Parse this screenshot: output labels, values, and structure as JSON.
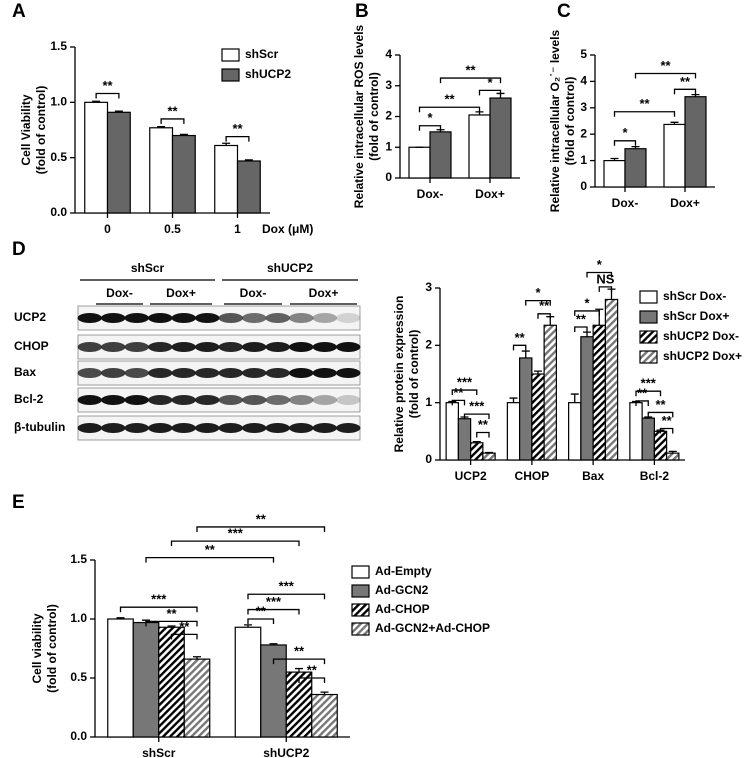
{
  "chart_data": [
    {
      "type": "bar",
      "panel": "A",
      "ylabel": [
        "Cell Viability",
        "(fold of control)"
      ],
      "xlabel": "Dox (μM)",
      "categories": [
        "0",
        "0.5",
        "1"
      ],
      "series": [
        {
          "name": "shScr",
          "color": "#ffffff",
          "values": [
            1.0,
            0.77,
            0.61
          ],
          "errors": [
            0.01,
            0.01,
            0.02
          ]
        },
        {
          "name": "shUCP2",
          "color": "#666666",
          "values": [
            0.91,
            0.7,
            0.47
          ],
          "errors": [
            0.01,
            0.01,
            0.01
          ]
        }
      ],
      "ylim": [
        0,
        1.5
      ],
      "yticks": [
        {
          "value": 0,
          "label": "0.0"
        },
        {
          "value": 0.5,
          "label": "0.5"
        },
        {
          "value": 1.0,
          "label": "1.0"
        },
        {
          "value": 1.5,
          "label": "1.5"
        }
      ],
      "legend": true,
      "annotations": [
        {
          "text": "**",
          "x": [
            -0.175,
            0.175
          ],
          "y": 1.08
        },
        {
          "text": "**",
          "x": [
            0.825,
            1.175
          ],
          "y": 0.85
        },
        {
          "text": "**",
          "x": [
            1.825,
            2.175
          ],
          "y": 0.69
        }
      ]
    },
    {
      "type": "bar",
      "panel": "B",
      "ylabel": [
        "Relative intracellular ROS levels",
        "(fold of control)"
      ],
      "categories": [
        "Dox-",
        "Dox+"
      ],
      "series": [
        {
          "name": "shScr",
          "color": "#ffffff",
          "values": [
            1.0,
            2.05
          ],
          "errors": [
            0.0,
            0.1
          ]
        },
        {
          "name": "shUCP2",
          "color": "#666666",
          "values": [
            1.5,
            2.6
          ],
          "errors": [
            0.07,
            0.15
          ]
        }
      ],
      "ylim": [
        0,
        4
      ],
      "yticks": [
        0,
        1,
        2,
        3,
        4
      ],
      "legend": false,
      "annotations": [
        {
          "text": "*",
          "x": [
            -0.175,
            0.175
          ],
          "y": 1.7
        },
        {
          "text": "**",
          "x": [
            -0.175,
            0.825
          ],
          "y": 2.3
        },
        {
          "text": "*",
          "x": [
            0.825,
            1.175
          ],
          "y": 2.85
        },
        {
          "text": "**",
          "x": [
            0.175,
            1.175
          ],
          "y": 3.25
        }
      ]
    },
    {
      "type": "bar",
      "panel": "C",
      "ylabel": [
        "Relative intracellular O₂˙⁻ levels",
        "(fold of control)"
      ],
      "categories": [
        "Dox-",
        "Dox+"
      ],
      "series": [
        {
          "name": "shScr",
          "color": "#ffffff",
          "values": [
            1.0,
            2.37
          ],
          "errors": [
            0.08,
            0.08
          ]
        },
        {
          "name": "shUCP2",
          "color": "#666666",
          "values": [
            1.45,
            3.42
          ],
          "errors": [
            0.08,
            0.08
          ]
        }
      ],
      "ylim": [
        0,
        5
      ],
      "yticks": [
        0,
        1,
        2,
        3,
        4,
        5
      ],
      "legend": false,
      "annotations": [
        {
          "text": "*",
          "x": [
            -0.175,
            0.175
          ],
          "y": 1.75
        },
        {
          "text": "**",
          "x": [
            -0.175,
            0.825
          ],
          "y": 2.85
        },
        {
          "text": "**",
          "x": [
            0.825,
            1.175
          ],
          "y": 3.7
        },
        {
          "text": "**",
          "x": [
            0.175,
            1.175
          ],
          "y": 4.3
        }
      ]
    },
    {
      "type": "bar",
      "panel": "D",
      "ylabel": [
        "Relative protein expression",
        "(fold of control)"
      ],
      "categories": [
        "UCP2",
        "CHOP",
        "Bax",
        "Bcl-2"
      ],
      "series": [
        {
          "name": "shScr Dox-",
          "color": "#ffffff",
          "values": [
            1.0,
            1.0,
            1.0,
            1.0
          ],
          "errors": [
            0.02,
            0.08,
            0.15,
            0.02
          ]
        },
        {
          "name": "shScr Dox+",
          "color": "#777777",
          "values": [
            0.72,
            1.78,
            2.15,
            0.73
          ],
          "errors": [
            0.03,
            0.12,
            0.08,
            0.02
          ]
        },
        {
          "name": "shUCP2 Dox-",
          "color": "#000000",
          "hatch": true,
          "values": [
            0.3,
            1.5,
            2.35,
            0.5
          ],
          "errors": [
            0.02,
            0.05,
            0.28,
            0.02
          ]
        },
        {
          "name": "shUCP2 Dox+",
          "color": "#777777",
          "hatch": true,
          "values": [
            0.12,
            2.35,
            2.8,
            0.12
          ],
          "errors": [
            0.01,
            0.15,
            0.18,
            0.03
          ]
        }
      ],
      "ylim": [
        0,
        3
      ],
      "yticks": [
        0,
        1,
        2,
        3
      ],
      "legend": true,
      "annotations": [
        {
          "text": "***",
          "x": [
            -0.3,
            0.1
          ],
          "y": 1.22
        },
        {
          "text": "**",
          "x": [
            -0.3,
            -0.1
          ],
          "y": 1.04
        },
        {
          "text": "***",
          "x": [
            -0.1,
            0.3
          ],
          "y": 0.8
        },
        {
          "text": "**",
          "x": [
            0.1,
            0.3
          ],
          "y": 0.48
        },
        {
          "text": "**",
          "x": [
            0.7,
            0.9
          ],
          "y": 2.0
        },
        {
          "text": "**",
          "x": [
            1.1,
            1.3
          ],
          "y": 2.55
        },
        {
          "text": "*",
          "x": [
            0.9,
            1.3
          ],
          "y": 2.78
        },
        {
          "text": "**",
          "x": [
            1.7,
            1.9
          ],
          "y": 2.32
        },
        {
          "text": "*",
          "x": [
            1.7,
            2.1
          ],
          "y": 2.6
        },
        {
          "text": "NS",
          "x": [
            2.1,
            2.3
          ],
          "y": 3.02
        },
        {
          "text": "*",
          "x": [
            1.9,
            2.3
          ],
          "y": 3.27
        },
        {
          "text": "***",
          "x": [
            2.7,
            3.1
          ],
          "y": 1.2
        },
        {
          "text": "**",
          "x": [
            2.7,
            2.9
          ],
          "y": 1.03
        },
        {
          "text": "**",
          "x": [
            2.9,
            3.3
          ],
          "y": 0.83
        },
        {
          "text": "**",
          "x": [
            3.1,
            3.3
          ],
          "y": 0.55
        }
      ]
    },
    {
      "type": "bar",
      "panel": "E",
      "ylabel": [
        "Cell viability",
        "(fold of control)"
      ],
      "categories": [
        "shScr",
        "shUCP2"
      ],
      "series": [
        {
          "name": "Ad-Empty",
          "color": "#ffffff",
          "values": [
            1.0,
            0.93
          ],
          "errors": [
            0.01,
            0.02
          ]
        },
        {
          "name": "Ad-GCN2",
          "color": "#777777",
          "values": [
            0.97,
            0.78
          ],
          "errors": [
            0.02,
            0.01
          ]
        },
        {
          "name": "Ad-CHOP",
          "color": "#000000",
          "hatch": true,
          "values": [
            0.93,
            0.55
          ],
          "errors": [
            0.01,
            0.03
          ]
        },
        {
          "name": "Ad-GCN2+Ad-CHOP",
          "color": "#777777",
          "hatch": true,
          "values": [
            0.66,
            0.36
          ],
          "errors": [
            0.02,
            0.02
          ]
        }
      ],
      "ylim": [
        0,
        1.5
      ],
      "yticks": [
        {
          "value": 0,
          "label": "0.0"
        },
        {
          "value": 0.5,
          "label": "0.5"
        },
        {
          "value": 1.0,
          "label": "1.0"
        },
        {
          "value": 1.5,
          "label": "1.5"
        }
      ],
      "legend": true,
      "annotations": [
        {
          "text": "***",
          "x": [
            -0.3,
            0.3
          ],
          "y": 1.1
        },
        {
          "text": "**",
          "x": [
            -0.1,
            0.3
          ],
          "y": 0.98
        },
        {
          "text": "**",
          "x": [
            0.1,
            0.3
          ],
          "y": 0.87
        },
        {
          "text": "**",
          "x": [
            0.7,
            0.9
          ],
          "y": 1.0
        },
        {
          "text": "***",
          "x": [
            0.7,
            1.1
          ],
          "y": 1.08
        },
        {
          "text": "***",
          "x": [
            0.7,
            1.3
          ],
          "y": 1.21
        },
        {
          "text": "**",
          "x": [
            0.9,
            1.3
          ],
          "y": 0.66
        },
        {
          "text": "**",
          "x": [
            1.1,
            1.3
          ],
          "y": 0.5
        },
        {
          "text": "**",
          "x": [
            -0.1,
            0.9
          ],
          "y": 1.52
        },
        {
          "text": "***",
          "x": [
            0.1,
            1.1
          ],
          "y": 1.66
        },
        {
          "text": "**",
          "x": [
            0.3,
            1.3
          ],
          "y": 1.78
        }
      ]
    }
  ],
  "blot": {
    "groups": [
      "shScr",
      "shUCP2"
    ],
    "treatments": [
      "Dox-",
      "Dox+",
      "Dox-",
      "Dox+"
    ],
    "rows": [
      "UCP2",
      "CHOP",
      "Bax",
      "Bcl-2",
      "β-tubulin"
    ]
  }
}
